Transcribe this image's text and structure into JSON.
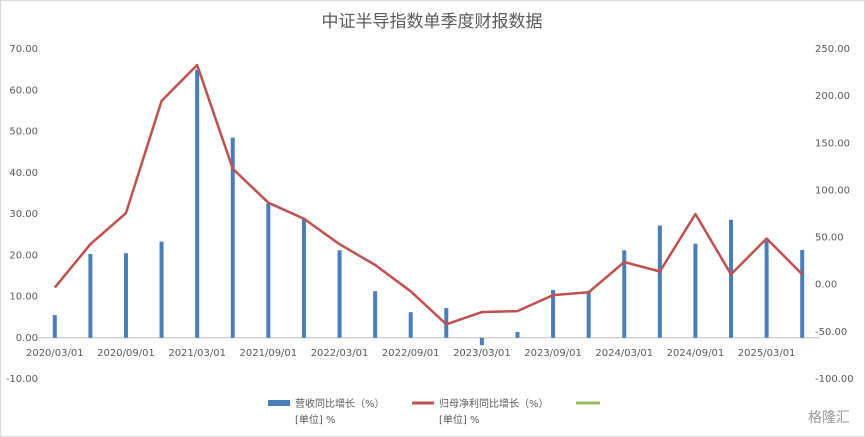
{
  "chart_data": {
    "type": "bar_line",
    "title": "中证半导指数单季度财报数据",
    "categories": [
      "2020/03/01",
      null,
      "2020/09/01",
      null,
      "2021/03/01",
      null,
      "2021/09/01",
      null,
      "2022/03/01",
      null,
      "2022/09/01",
      null,
      "2023/03/01",
      null,
      "2023/09/01",
      null,
      "2024/03/01",
      null,
      "2024/09/01",
      null,
      "2025/03/01",
      null
    ],
    "series": [
      {
        "name": "营收同比增长（%）",
        "unit": "[单位] %",
        "kind": "bar",
        "color": "#4a7ebb",
        "axis": "y",
        "values": [
          5.5,
          20.3,
          20.5,
          23.3,
          65,
          48.5,
          32.5,
          29,
          21.2,
          11.3,
          6.2,
          7.2,
          -1.8,
          1.4,
          11.6,
          11,
          21.2,
          27.2,
          22.8,
          28.6,
          23.5,
          21.3
        ]
      },
      {
        "name": "归母净利同比增长（%）",
        "unit": "[单位] %",
        "kind": "line",
        "color": "#c0504d",
        "axis": "y2",
        "values": [
          -3,
          43,
          76,
          195,
          233,
          123,
          87,
          70,
          43,
          21,
          -7,
          -42,
          -29,
          -28,
          -11,
          -8,
          24,
          14,
          75,
          11,
          49,
          11
        ]
      }
    ],
    "ylim": [
      -10,
      70
    ],
    "yticks": [
      {
        "value": -10,
        "label": "-10.00"
      },
      {
        "value": 0,
        "label": "0.00"
      },
      {
        "value": 10,
        "label": "10.00"
      },
      {
        "value": 20,
        "label": "20.00"
      },
      {
        "value": 30,
        "label": "30.00"
      },
      {
        "value": 40,
        "label": "40.00"
      },
      {
        "value": 50,
        "label": "50.00"
      },
      {
        "value": 60,
        "label": "60.00"
      },
      {
        "value": 70,
        "label": "70.00"
      }
    ],
    "y2lim": [
      -100,
      250
    ],
    "y2ticks": [
      {
        "value": -100,
        "label": "-100.00"
      },
      {
        "value": -50,
        "label": "-50.00"
      },
      {
        "value": 0,
        "label": "0.00"
      },
      {
        "value": 50,
        "label": "50.00"
      },
      {
        "value": 100,
        "label": "100.00"
      },
      {
        "value": 150,
        "label": "150.00"
      },
      {
        "value": 200,
        "label": "200.00"
      },
      {
        "value": 250,
        "label": "250.00"
      }
    ],
    "grid": false,
    "watermark": "格隆汇"
  }
}
